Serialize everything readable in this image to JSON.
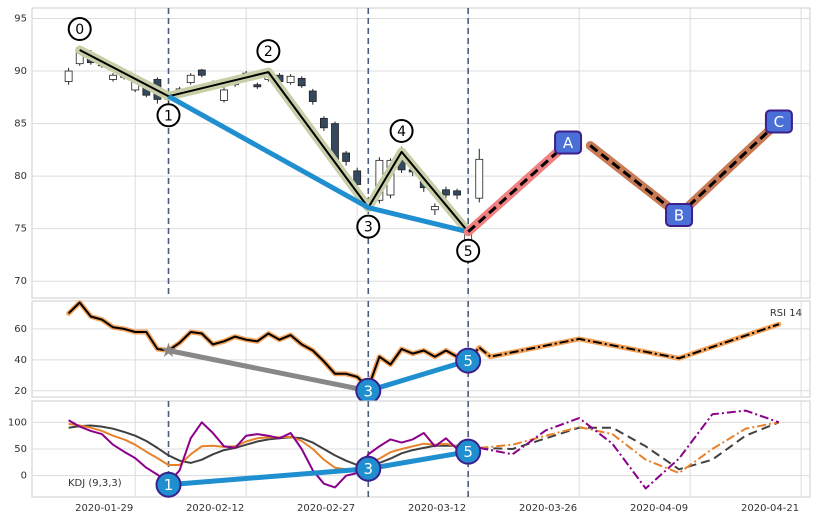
{
  "chart_data": [
    {
      "type": "candlestick",
      "xlim": [
        -3.3,
        66.8
      ],
      "ylim": [
        68.4,
        96
      ],
      "yticks": [
        70,
        75,
        80,
        85,
        90,
        95
      ],
      "grid": true,
      "vlines": [
        9,
        27,
        36
      ],
      "up_color": "#ffffff",
      "down_color": "#34495e",
      "x": [
        0,
        1,
        2,
        3,
        4,
        5,
        6,
        7,
        8,
        9,
        10,
        11,
        12,
        13,
        14,
        15,
        16,
        17,
        18,
        19,
        20,
        21,
        22,
        23,
        24,
        25,
        26,
        27,
        28,
        29,
        30,
        31,
        32,
        33,
        34,
        35,
        36,
        37
      ],
      "open": [
        89.0,
        90.7,
        91.7,
        91.0,
        89.2,
        89.9,
        88.2,
        88.9,
        89.2,
        87.9,
        88.1,
        88.9,
        90.1,
        88.4,
        87.2,
        88.7,
        89.8,
        88.7,
        89.2,
        89.6,
        88.9,
        89.3,
        88.1,
        85.5,
        85.0,
        82.2,
        80.5,
        77.0,
        77.7,
        78.2,
        82.5,
        80.6,
        79.8,
        76.8,
        78.7,
        78.6,
        73.3,
        77.9
      ],
      "high": [
        90.3,
        92.3,
        92.0,
        91.2,
        89.8,
        90.1,
        89.4,
        89.1,
        89.4,
        88.1,
        88.5,
        89.8,
        90.2,
        89.1,
        88.5,
        89.5,
        90.0,
        88.9,
        90.2,
        89.8,
        89.7,
        89.5,
        88.3,
        85.7,
        85.2,
        82.4,
        80.8,
        78.0,
        81.8,
        81.7,
        82.8,
        80.8,
        80.2,
        77.4,
        79.0,
        78.8,
        75.2,
        82.6
      ],
      "low": [
        88.7,
        90.5,
        90.6,
        90.3,
        89.0,
        89.2,
        88.0,
        87.5,
        86.9,
        87.0,
        88.0,
        88.7,
        89.4,
        88.2,
        87.0,
        88.5,
        89.0,
        88.3,
        89.0,
        88.8,
        88.7,
        88.4,
        86.8,
        84.3,
        81.0,
        81.0,
        78.9,
        76.8,
        77.4,
        77.9,
        80.3,
        80.0,
        78.5,
        76.3,
        77.9,
        77.8,
        72.6,
        77.5
      ],
      "close": [
        90.0,
        91.8,
        90.8,
        90.5,
        89.6,
        89.4,
        89.2,
        87.7,
        87.3,
        87.3,
        88.3,
        89.6,
        89.6,
        88.9,
        88.2,
        89.3,
        89.2,
        88.5,
        89.9,
        89.0,
        89.5,
        88.6,
        87.1,
        84.6,
        81.3,
        81.4,
        79.2,
        77.5,
        81.5,
        81.5,
        80.6,
        80.4,
        78.9,
        77.1,
        78.2,
        78.2,
        74.6,
        81.6
      ],
      "series": [
        {
          "color": "#000000",
          "outline": "#c8cfa8",
          "x": [
            1,
            9,
            18,
            27,
            30,
            36
          ],
          "values": [
            92.0,
            87.6,
            89.9,
            77.0,
            82.3,
            74.7
          ]
        },
        {
          "color": "#1f8fd0",
          "kind": "trend",
          "x": [
            9,
            27,
            36
          ],
          "values": [
            87.6,
            77.0,
            74.7
          ]
        },
        {
          "color": "#000000",
          "outline": "#f08080",
          "linestyle": "dash",
          "x": [
            36,
            45
          ],
          "values": [
            74.7,
            83.2
          ]
        },
        {
          "color": "#000000",
          "outline": "#c87a55",
          "linestyle": "dash",
          "x": [
            47,
            55,
            64
          ],
          "values": [
            82.9,
            76.3,
            85.2
          ]
        }
      ],
      "markers": [
        {
          "style": "ring",
          "color": "#000000",
          "x": [
            1,
            9,
            18,
            27,
            30,
            36
          ],
          "values": [
            92.0,
            87.6,
            89.9,
            77.0,
            82.3,
            74.7
          ],
          "labels": [
            "0",
            "1",
            "2",
            "3",
            "4",
            "5"
          ]
        },
        {
          "style": "box",
          "color": "#4a6fd6",
          "x": [
            45,
            55,
            64
          ],
          "values": [
            83.2,
            76.3,
            85.2
          ],
          "labels": [
            "A",
            "B",
            "C"
          ]
        }
      ]
    },
    {
      "type": "line",
      "xlim": [
        -3.3,
        66.8
      ],
      "ylim": [
        16,
        78
      ],
      "yticks": [
        20,
        40,
        60
      ],
      "grid": true,
      "vlines": [
        27,
        36
      ],
      "label": "RSI 14",
      "label_corner": "upper right",
      "series": [
        {
          "color": "#000000",
          "outline": "#f5a35a",
          "x": [
            0,
            1,
            2,
            3,
            4,
            5,
            6,
            7,
            8,
            9,
            10,
            11,
            12,
            13,
            14,
            15,
            16,
            17,
            18,
            19,
            20,
            21,
            22,
            23,
            24,
            25,
            26,
            27,
            28,
            29,
            30,
            31,
            32,
            33,
            34,
            35,
            36,
            37
          ],
          "values": [
            70,
            77,
            68,
            66,
            61,
            60,
            58,
            58,
            47,
            46,
            51,
            58,
            57,
            50,
            52,
            55,
            53,
            52,
            57,
            53,
            56,
            50,
            46,
            39,
            31,
            31,
            29,
            22,
            42,
            37,
            47,
            44,
            46,
            42,
            46,
            42,
            40,
            48
          ]
        },
        {
          "color": "#000000",
          "outline": "#f5a35a",
          "linestyle": "dashdot",
          "x": [
            37,
            38,
            46,
            55,
            64
          ],
          "values": [
            48,
            42,
            53.5,
            41,
            63
          ]
        },
        {
          "color": "#888888",
          "kind": "trend",
          "x": [
            9,
            27
          ],
          "values": [
            46,
            20
          ]
        },
        {
          "color": "#1f8fd0",
          "kind": "trend",
          "x": [
            27,
            36
          ],
          "values": [
            20,
            39.5
          ]
        }
      ],
      "markers": [
        {
          "style": "star",
          "color": "#888888",
          "x": [
            9
          ],
          "values": [
            46
          ]
        },
        {
          "style": "disc",
          "color": "#1f8fd0",
          "x": [
            27,
            36
          ],
          "values": [
            20,
            39.5
          ],
          "labels": [
            "3",
            "5"
          ]
        }
      ]
    },
    {
      "type": "line",
      "xlim": [
        -3.3,
        66.8
      ],
      "ylim": [
        -40,
        140
      ],
      "yticks": [
        0,
        50,
        100
      ],
      "grid": true,
      "vlines": [
        9,
        27,
        36
      ],
      "label": "KDJ (9,3,3)",
      "label_corner": "lower left",
      "xticks": [
        {
          "value": 6,
          "label": "2020-01-29"
        },
        {
          "value": 16,
          "label": "2020-02-12"
        },
        {
          "value": 26,
          "label": "2020-02-27"
        },
        {
          "value": 36,
          "label": "2020-03-12"
        },
        {
          "value": 46,
          "label": "2020-03-26"
        },
        {
          "value": 56,
          "label": "2020-04-09"
        },
        {
          "value": 66,
          "label": "2020-04-21"
        }
      ],
      "series": [
        {
          "color": "#404040",
          "x": [
            0,
            1,
            2,
            3,
            4,
            5,
            6,
            7,
            8,
            9,
            10,
            11,
            12,
            13,
            14,
            15,
            16,
            17,
            18,
            19,
            20,
            21,
            22,
            23,
            24,
            25,
            26,
            27,
            28,
            29,
            30,
            31,
            32,
            33,
            34,
            35,
            36,
            37
          ],
          "values": [
            90,
            93,
            94,
            92,
            88,
            82,
            75,
            65,
            52,
            38,
            28,
            24,
            30,
            40,
            48,
            52,
            58,
            64,
            68,
            70,
            72,
            70,
            62,
            50,
            38,
            28,
            20,
            20,
            24,
            32,
            42,
            48,
            52,
            56,
            56,
            56,
            54,
            52
          ]
        },
        {
          "color": "#e8822a",
          "x": [
            0,
            1,
            2,
            3,
            4,
            5,
            6,
            7,
            8,
            9,
            10,
            11,
            12,
            13,
            14,
            15,
            16,
            17,
            18,
            19,
            20,
            21,
            22,
            23,
            24,
            25,
            26,
            27,
            28,
            29,
            30,
            31,
            32,
            33,
            34,
            35,
            36,
            37
          ],
          "values": [
            97,
            94,
            90,
            84,
            75,
            68,
            58,
            45,
            33,
            20,
            20,
            40,
            55,
            56,
            54,
            55,
            64,
            70,
            72,
            72,
            73,
            65,
            50,
            30,
            15,
            12,
            14,
            22,
            32,
            44,
            50,
            55,
            60,
            58,
            60,
            55,
            52,
            50
          ]
        },
        {
          "color": "#8b008b",
          "x": [
            0,
            1,
            2,
            3,
            4,
            5,
            6,
            7,
            8,
            9,
            10,
            11,
            12,
            13,
            14,
            15,
            16,
            17,
            18,
            19,
            20,
            21,
            22,
            23,
            24,
            25,
            26,
            27,
            28,
            29,
            30,
            31,
            32,
            33,
            34,
            35,
            36,
            37
          ],
          "values": [
            104,
            92,
            84,
            78,
            58,
            45,
            33,
            15,
            2,
            -14,
            10,
            70,
            100,
            80,
            55,
            52,
            75,
            78,
            75,
            70,
            80,
            50,
            10,
            -15,
            -22,
            0,
            5,
            40,
            55,
            68,
            62,
            68,
            80,
            55,
            70,
            50,
            48,
            52
          ]
        },
        {
          "color": "#404040",
          "linestyle": "dash",
          "x": [
            37,
            40,
            43,
            46,
            49,
            52,
            55,
            58,
            61,
            64
          ],
          "values": [
            52,
            50,
            70,
            90,
            90,
            55,
            12,
            30,
            75,
            100
          ]
        },
        {
          "color": "#e8822a",
          "linestyle": "dashdot",
          "x": [
            37,
            40,
            43,
            46,
            49,
            52,
            55,
            58,
            61,
            64
          ],
          "values": [
            52,
            58,
            75,
            91,
            78,
            30,
            5,
            50,
            88,
            100
          ]
        },
        {
          "color": "#8b008b",
          "linestyle": "dashdot",
          "x": [
            37,
            40,
            43,
            46,
            49,
            52,
            55,
            58,
            61,
            64
          ],
          "values": [
            52,
            40,
            85,
            108,
            60,
            -24,
            32,
            115,
            122,
            100
          ]
        },
        {
          "color": "#1f8fd0",
          "kind": "trend",
          "x": [
            9,
            27,
            36
          ],
          "values": [
            -17,
            13,
            45
          ]
        }
      ],
      "markers": [
        {
          "style": "disc",
          "color": "#1f8fd0",
          "x": [
            9,
            27,
            36
          ],
          "values": [
            -17,
            13,
            45
          ],
          "labels": [
            "1",
            "3",
            "5"
          ]
        }
      ]
    }
  ]
}
